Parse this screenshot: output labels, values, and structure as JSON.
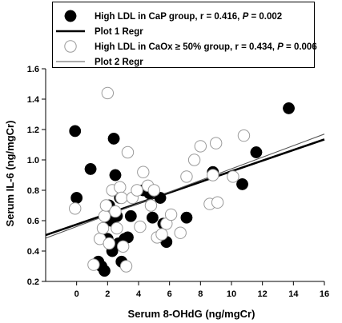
{
  "chart_data": {
    "type": "scatter",
    "xlabel": "Serum 8-OHdG (ng/mgCr)",
    "ylabel": "Serum IL-6 (ng/mgCr)",
    "xlim": [
      -2,
      16
    ],
    "ylim": [
      0.2,
      1.6
    ],
    "xticks": [
      0,
      2,
      4,
      6,
      8,
      10,
      12,
      14,
      16
    ],
    "yticks": [
      0.2,
      0.4,
      0.6,
      0.8,
      1.0,
      1.2,
      1.4,
      1.6
    ],
    "ytick_labels": [
      "0.2",
      "0.4",
      "0.6",
      "0.8",
      "1.0",
      "1.2",
      "1.4",
      "1.6"
    ],
    "legend_placement": "top",
    "legend": [
      {
        "key": "s1",
        "parts": [
          {
            "t": "High LDL in CaP group, r = 0.416, "
          },
          {
            "t": "P",
            "i": true
          },
          {
            "t": " = 0.002"
          }
        ]
      },
      {
        "key": "r1",
        "parts": [
          {
            "t": "Plot 1 Regr"
          }
        ]
      },
      {
        "key": "s2",
        "parts": [
          {
            "t": "High LDL in CaOx ≥ 50% group, r = 0.434, "
          },
          {
            "t": "P",
            "i": true
          },
          {
            "t": " = 0.006"
          }
        ]
      },
      {
        "key": "r2",
        "parts": [
          {
            "t": "Plot 2 Regr"
          }
        ]
      }
    ],
    "series": [
      {
        "key": "s1",
        "marker": "filled-circle",
        "color": "#000000",
        "points": [
          [
            -0.1,
            1.19
          ],
          [
            0.0,
            0.75
          ],
          [
            0.9,
            0.94
          ],
          [
            1.4,
            0.33
          ],
          [
            1.6,
            0.3
          ],
          [
            1.8,
            0.27
          ],
          [
            2.0,
            0.48
          ],
          [
            2.1,
            0.7
          ],
          [
            2.2,
            0.6
          ],
          [
            2.3,
            0.4
          ],
          [
            2.4,
            1.14
          ],
          [
            2.5,
            0.9
          ],
          [
            2.6,
            0.63
          ],
          [
            2.7,
            0.45
          ],
          [
            2.8,
            0.75
          ],
          [
            2.9,
            0.33
          ],
          [
            3.1,
            0.48
          ],
          [
            3.3,
            0.49
          ],
          [
            3.5,
            0.63
          ],
          [
            4.3,
            0.8
          ],
          [
            4.7,
            0.78
          ],
          [
            4.9,
            0.62
          ],
          [
            5.4,
            0.75
          ],
          [
            5.6,
            0.58
          ],
          [
            5.8,
            0.46
          ],
          [
            7.1,
            0.62
          ],
          [
            8.8,
            0.92
          ],
          [
            10.7,
            0.84
          ],
          [
            11.6,
            1.05
          ],
          [
            13.7,
            1.34
          ]
        ]
      },
      {
        "key": "s2",
        "marker": "open-circle",
        "color": "#ffffff",
        "points": [
          [
            -0.1,
            0.68
          ],
          [
            1.1,
            0.31
          ],
          [
            1.5,
            0.48
          ],
          [
            1.7,
            0.55
          ],
          [
            1.8,
            0.63
          ],
          [
            1.9,
            0.7
          ],
          [
            2.0,
            1.44
          ],
          [
            2.1,
            0.45
          ],
          [
            2.3,
            0.8
          ],
          [
            2.5,
            0.66
          ],
          [
            2.6,
            0.55
          ],
          [
            2.8,
            0.82
          ],
          [
            2.9,
            0.75
          ],
          [
            3.0,
            0.43
          ],
          [
            3.2,
            0.3
          ],
          [
            3.3,
            1.05
          ],
          [
            3.6,
            0.75
          ],
          [
            3.9,
            0.8
          ],
          [
            4.1,
            0.56
          ],
          [
            4.3,
            0.92
          ],
          [
            4.6,
            0.83
          ],
          [
            4.8,
            0.7
          ],
          [
            5.0,
            0.8
          ],
          [
            5.2,
            0.49
          ],
          [
            5.5,
            0.51
          ],
          [
            5.8,
            0.58
          ],
          [
            6.1,
            0.64
          ],
          [
            6.7,
            0.52
          ],
          [
            7.1,
            0.89
          ],
          [
            7.6,
            1.0
          ],
          [
            8.0,
            1.09
          ],
          [
            8.6,
            0.71
          ],
          [
            8.8,
            0.9
          ],
          [
            9.0,
            1.11
          ],
          [
            9.1,
            0.72
          ],
          [
            10.1,
            0.89
          ],
          [
            10.8,
            1.16
          ]
        ]
      }
    ],
    "regressions": [
      {
        "key": "r1",
        "style": "thick",
        "x": [
          -2,
          16
        ],
        "y": [
          0.505,
          1.135
        ]
      },
      {
        "key": "r2",
        "style": "thin",
        "x": [
          -2,
          16
        ],
        "y": [
          0.485,
          1.17
        ]
      }
    ]
  }
}
